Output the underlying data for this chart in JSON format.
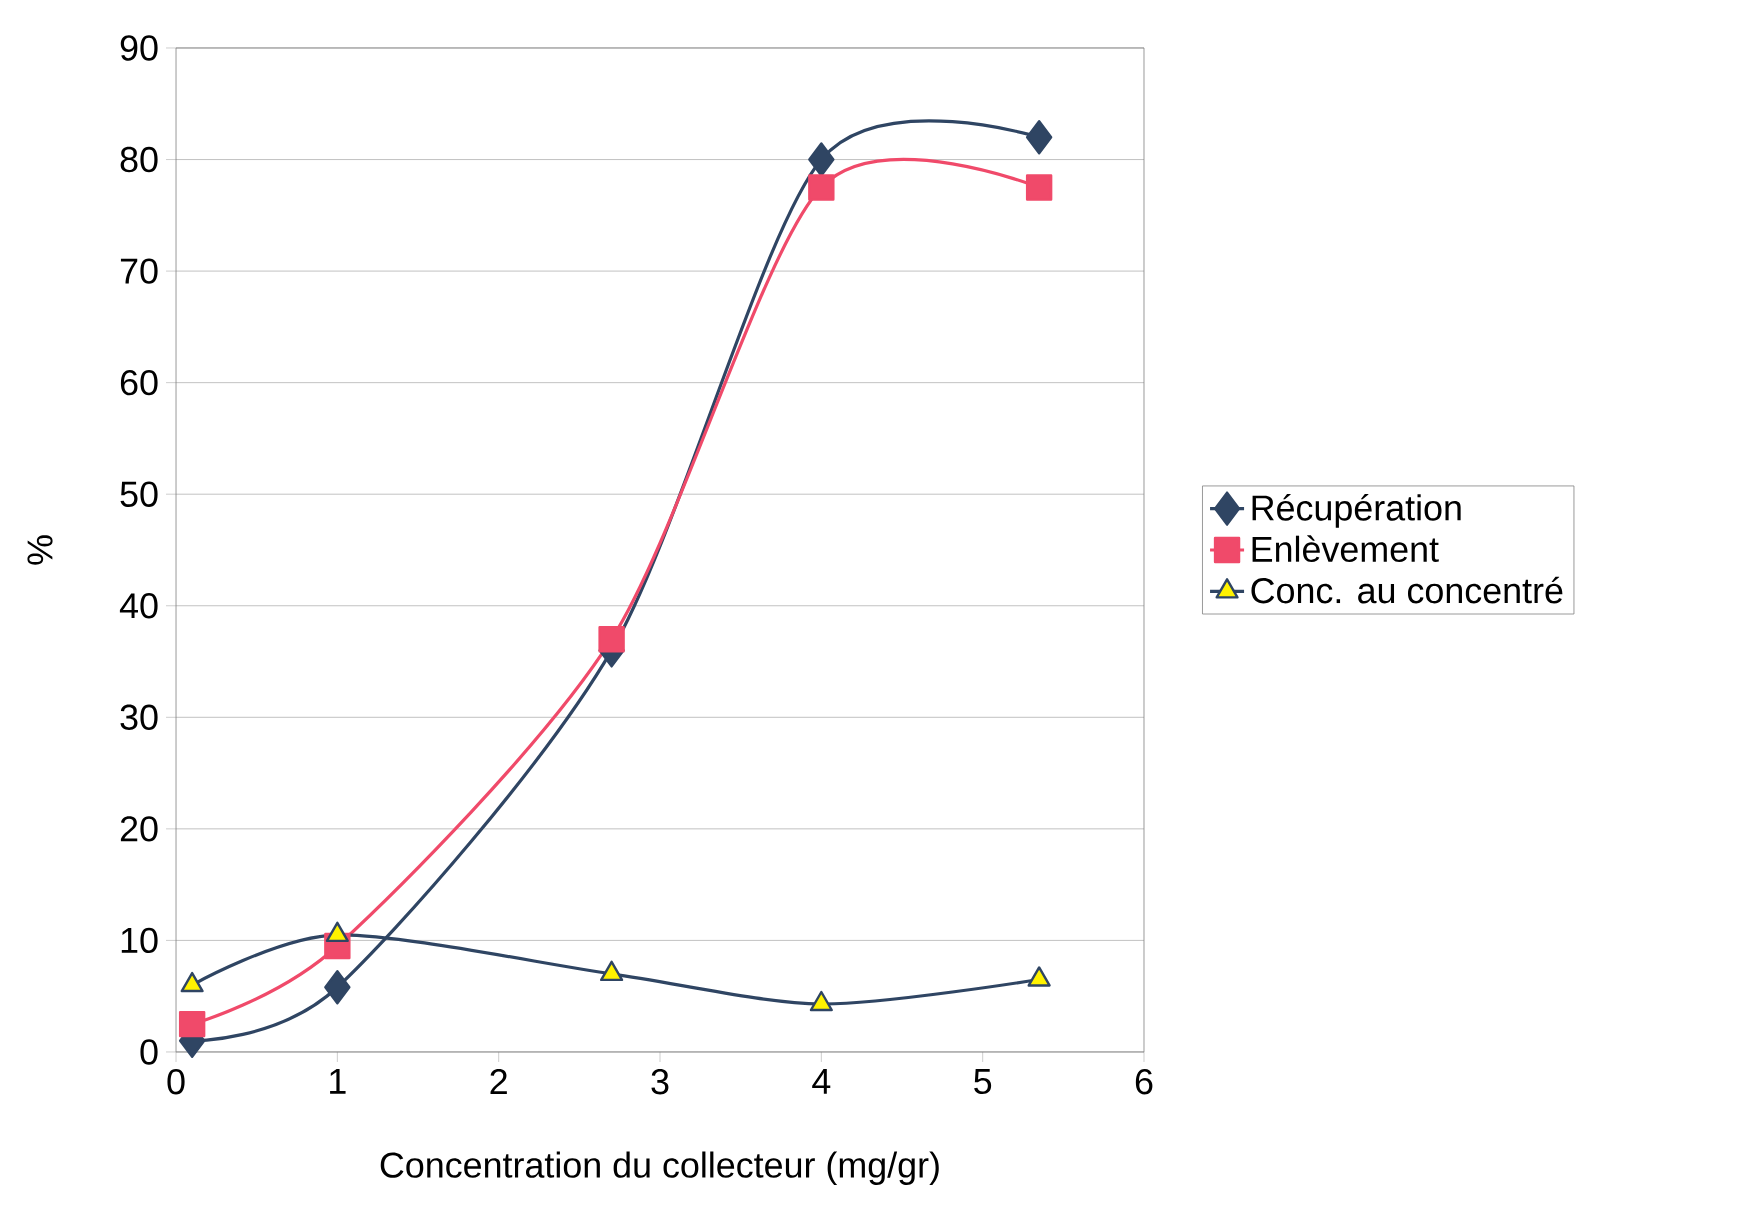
{
  "chart_data": {
    "type": "line",
    "xlabel": "Concentration du collecteur (mg/gr)",
    "ylabel": "%",
    "xlim": [
      0,
      6
    ],
    "xticks": [
      0,
      1,
      2,
      3,
      4,
      5,
      6
    ],
    "ylim": [
      0,
      90
    ],
    "yticks": [
      0,
      10,
      20,
      30,
      40,
      50,
      60,
      70,
      80,
      90
    ],
    "grid": "y",
    "legend": "right",
    "line_style": "solid",
    "series": [
      {
        "name": "Récupération",
        "color": "#2f4563",
        "marker": "diamond",
        "x": [
          0.1,
          1,
          2.7,
          4,
          5.35
        ],
        "values": [
          1,
          5.8,
          36,
          80,
          82
        ]
      },
      {
        "name": "Enlèvement",
        "color": "#f04a6a",
        "marker": "square",
        "x": [
          0.1,
          1,
          2.7,
          4,
          5.35
        ],
        "values": [
          2.5,
          9.5,
          37,
          77.5,
          77.5
        ]
      },
      {
        "name": "Conc. au concentré",
        "color": "#2f4563",
        "marker": "triangle",
        "x": [
          0.1,
          1,
          2.7,
          4,
          5.35
        ],
        "values": [
          6,
          10.5,
          7,
          4.3,
          6.5
        ]
      }
    ]
  }
}
